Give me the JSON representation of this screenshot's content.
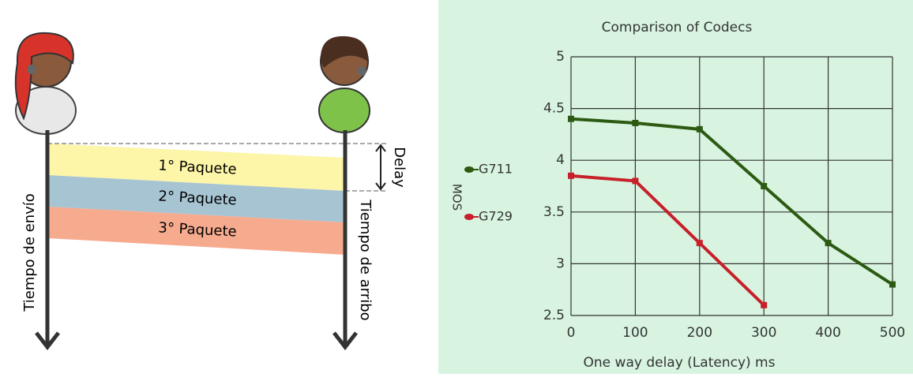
{
  "diagram": {
    "packets": [
      "1° Paquete",
      "2° Paquete",
      "3° Paquete"
    ],
    "delay_label": "Delay",
    "send_label": "Tiempo de envío",
    "arrival_label": "Tiempo de arribo"
  },
  "chart_data": {
    "type": "line",
    "title": "Comparison of Codecs",
    "x_label": "One way delay (Latency) ms",
    "y_label": "MOS",
    "xlim": [
      0,
      500
    ],
    "ylim": [
      2.5,
      5
    ],
    "xticks": [
      0,
      100,
      200,
      300,
      400,
      500
    ],
    "yticks": [
      2.5,
      3,
      3.5,
      4,
      4.5,
      5
    ],
    "grid": true,
    "series": [
      {
        "name": "G711",
        "color": "#2d5a12",
        "x": [
          0,
          100,
          200,
          300,
          400,
          500
        ],
        "values": [
          4.4,
          4.36,
          4.3,
          3.75,
          3.2,
          2.8
        ]
      },
      {
        "name": "G729",
        "color": "#c8202a",
        "x": [
          0,
          100,
          200,
          300
        ],
        "values": [
          3.85,
          3.8,
          3.2,
          2.6
        ]
      }
    ]
  }
}
